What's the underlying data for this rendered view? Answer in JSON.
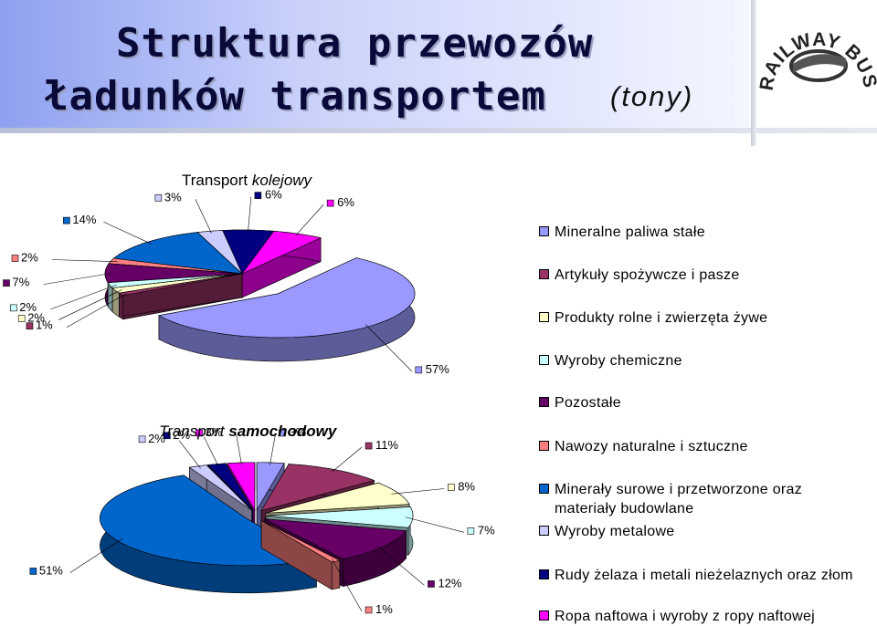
{
  "header": {
    "title_line1": "Struktura przewozów",
    "title_line2": "ładunków transportem",
    "unit": "(tony)"
  },
  "logo": {
    "text": "RAILWAY BUSINESS FORUM"
  },
  "legend": [
    {
      "label": "Mineralne paliwa stałe",
      "color": "#9999ff"
    },
    {
      "label": "Artykuły spożywcze i pasze",
      "color": "#993366"
    },
    {
      "label": "Produkty rolne i zwierzęta żywe",
      "color": "#ffffcc"
    },
    {
      "label": "Wyroby chemiczne",
      "color": "#ccffff"
    },
    {
      "label": "Pozostałe",
      "color": "#660066"
    },
    {
      "label": "Nawozy naturalne i sztuczne",
      "color": "#ff8080"
    },
    {
      "label": "Minerały surowe i przetworzone oraz materiały budowlane",
      "color": "#0066cc"
    },
    {
      "label": "Wyroby metalowe",
      "color": "#ccccff"
    },
    {
      "label": "Rudy żelaza i metali nieżelaznych oraz złom",
      "color": "#000080"
    },
    {
      "label": "Ropa naftowa i wyroby z ropy naftowej",
      "color": "#ff00ff"
    }
  ],
  "chart_data": [
    {
      "type": "pie",
      "title_prefix": "Transport",
      "title_emph": "kolejowy",
      "categories": [
        "Mineralne paliwa stałe",
        "Artykuły spożywcze i pasze",
        "Produkty rolne i zwierzęta żywe",
        "Wyroby chemiczne",
        "Pozostałe",
        "Nawozy naturalne i sztuczne",
        "Minerały surowe i przetworzone oraz materiały budowlane",
        "Wyroby metalowe",
        "Rudy żelaza i metali nieżelaznych oraz złom",
        "Ropa naftowa i wyroby z ropy naftowej"
      ],
      "values": [
        57,
        1,
        2,
        2,
        7,
        2,
        14,
        3,
        6,
        6
      ],
      "labels": [
        "57%",
        "1%",
        "2%",
        "2%",
        "7%",
        "2%",
        "14%",
        "3%",
        "6%",
        "6%"
      ],
      "exploded": "Mineralne paliwa stałe",
      "legend": "right"
    },
    {
      "type": "pie",
      "title_prefix": "Transport",
      "title_emph": "samochodowy",
      "categories": [
        "Mineralne paliwa stałe",
        "Artykuły spożywcze i pasze",
        "Produkty rolne i zwierzęta żywe",
        "Wyroby chemiczne",
        "Pozostałe",
        "Nawozy naturalne i sztuczne",
        "Minerały surowe i przetworzone oraz materiały budowlane",
        "Wyroby metalowe",
        "Rudy żelaza i metali nieżelaznych oraz złom",
        "Ropa naftowa i wyroby z ropy naftowej"
      ],
      "values": [
        3,
        11,
        8,
        7,
        12,
        1,
        51,
        2,
        2,
        3
      ],
      "labels": [
        "3%",
        "11%",
        "8%",
        "7%",
        "12%",
        "1%",
        "51%",
        "2%",
        "2%",
        "3%"
      ],
      "exploded": "all",
      "legend": "right"
    }
  ]
}
